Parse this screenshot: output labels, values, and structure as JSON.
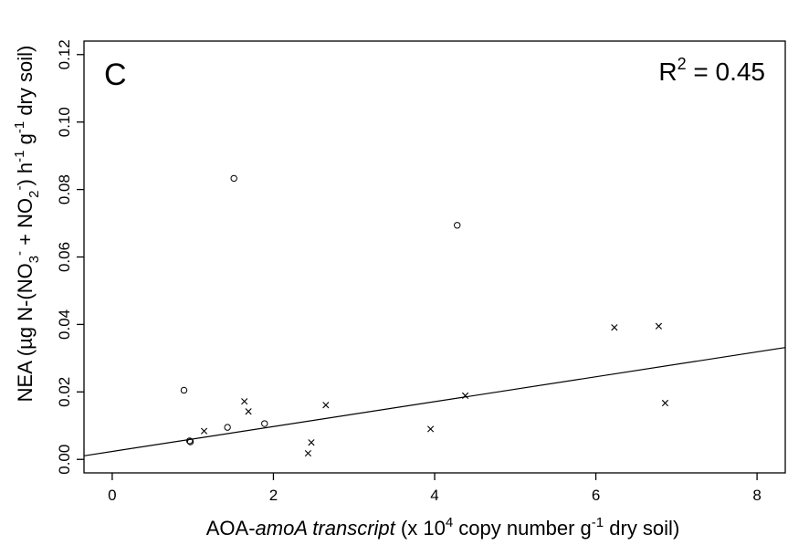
{
  "chart_data": {
    "type": "scatter",
    "panel_label": "C",
    "annotation": {
      "r2_prefix": "R",
      "r2_sup": "2",
      "r2_value": " = 0.45"
    },
    "xlabel": {
      "pre": "AOA-",
      "italic": "amoA transcript",
      "post1": " (x 10",
      "sup": "4",
      "post2": " copy number g",
      "sup2": "-1",
      "post3": " dry soil)"
    },
    "ylabel": {
      "p1": "NEA (µg N-(NO",
      "sub1": "3",
      "sup1": "-",
      "p2": " + NO",
      "sub2": "2",
      "sup2": "-",
      "p3": ") h",
      "sup3": "-1",
      "p4": " g",
      "sup4": "-1",
      "p5": " dry soil)"
    },
    "xlim": [
      -0.35,
      8.35
    ],
    "ylim": [
      -0.004,
      0.124
    ],
    "x_ticks": [
      0,
      2,
      4,
      6,
      8
    ],
    "x_tick_labels": [
      "0",
      "2",
      "4",
      "6",
      "8"
    ],
    "y_ticks": [
      0.0,
      0.02,
      0.04,
      0.06,
      0.08,
      0.1,
      0.12
    ],
    "y_tick_labels": [
      "0.00",
      "0.02",
      "0.04",
      "0.06",
      "0.08",
      "0.10",
      "0.12"
    ],
    "series": [
      {
        "marker": "circle",
        "points": [
          {
            "x": 0.89,
            "y": 0.0205
          },
          {
            "x": 0.96,
            "y": 0.0055
          },
          {
            "x": 0.97,
            "y": 0.0052
          },
          {
            "x": 1.43,
            "y": 0.0095
          },
          {
            "x": 1.51,
            "y": 0.0833
          },
          {
            "x": 1.89,
            "y": 0.0106
          },
          {
            "x": 4.28,
            "y": 0.0694
          }
        ]
      },
      {
        "marker": "cross",
        "points": [
          {
            "x": 1.14,
            "y": 0.0084
          },
          {
            "x": 1.64,
            "y": 0.0172
          },
          {
            "x": 1.69,
            "y": 0.0142
          },
          {
            "x": 2.43,
            "y": 0.0018
          },
          {
            "x": 2.47,
            "y": 0.005
          },
          {
            "x": 2.65,
            "y": 0.0161
          },
          {
            "x": 3.95,
            "y": 0.009
          },
          {
            "x": 4.38,
            "y": 0.0189
          },
          {
            "x": 6.23,
            "y": 0.0391
          },
          {
            "x": 6.78,
            "y": 0.0395
          },
          {
            "x": 6.86,
            "y": 0.0167
          }
        ]
      }
    ],
    "regression": {
      "intercept": 0.00235,
      "slope": 0.00369
    },
    "grid": false,
    "legend": "none"
  }
}
